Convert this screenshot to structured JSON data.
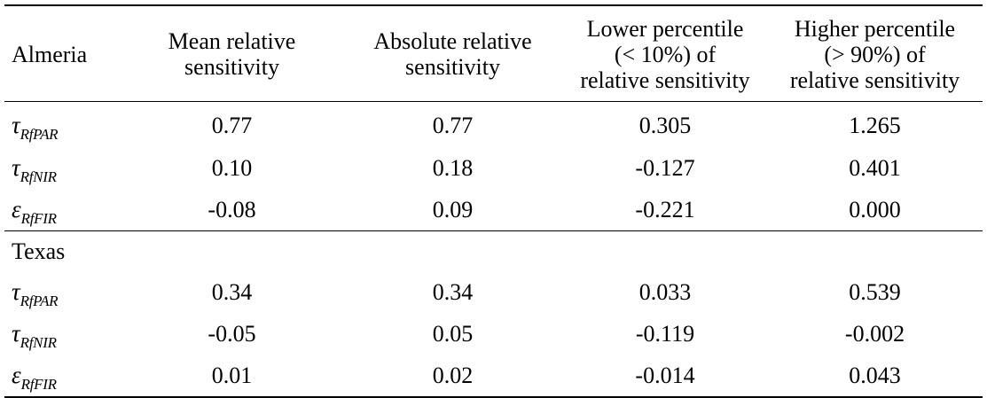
{
  "table": {
    "headers": {
      "site": "Almeria",
      "col1": [
        "Mean relative",
        "sensitivity"
      ],
      "col2": [
        "Absolute relative",
        "sensitivity"
      ],
      "col3": [
        "Lower percentile",
        "(< 10%) of",
        "relative sensitivity"
      ],
      "col4": [
        "Higher percentile",
        "(> 90%) of",
        "relative sensitivity"
      ]
    },
    "groups": [
      {
        "name": "Almeria",
        "rows": [
          {
            "symbol": "τ",
            "subscript": "RfPAR",
            "values": [
              "0.77",
              "0.77",
              "0.305",
              "1.265"
            ]
          },
          {
            "symbol": "τ",
            "subscript": "RfNIR",
            "values": [
              "0.10",
              "0.18",
              "-0.127",
              "0.401"
            ]
          },
          {
            "symbol": "ε",
            "subscript": "RfFIR",
            "values": [
              "-0.08",
              "0.09",
              "-0.221",
              "0.000"
            ]
          }
        ]
      },
      {
        "name": "Texas",
        "rows": [
          {
            "symbol": "τ",
            "subscript": "RfPAR",
            "values": [
              "0.34",
              "0.34",
              "0.033",
              "0.539"
            ]
          },
          {
            "symbol": "τ",
            "subscript": "RfNIR",
            "values": [
              "-0.05",
              "0.05",
              "-0.119",
              "-0.002"
            ]
          },
          {
            "symbol": "ε",
            "subscript": "RfFIR",
            "values": [
              "0.01",
              "0.02",
              "-0.014",
              "0.043"
            ]
          }
        ]
      }
    ]
  }
}
